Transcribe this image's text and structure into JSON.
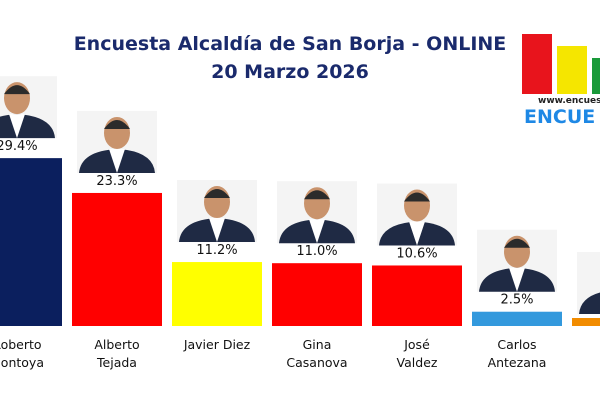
{
  "chart_data": {
    "type": "bar",
    "title": "Encuesta Alcaldía de San Borja - ONLINE",
    "subtitle": "20 Marzo 2026",
    "categories": [
      "Roberto Montoya",
      "Alberto Tejada",
      "Javier Diez",
      "Gina Casanova",
      "José Valdez",
      "Carlos Antezana",
      null
    ],
    "values": [
      29.4,
      23.3,
      11.2,
      11.0,
      10.6,
      2.5,
      1.4
    ],
    "value_labels": [
      "29.4%",
      "23.3%",
      "11.2%",
      "11.0%",
      "10.6%",
      "2.5%",
      null
    ],
    "colors": [
      "#0b1f5e",
      "#ff0000",
      "#ffff00",
      "#ff0000",
      "#ff0000",
      "#3399dd",
      "#f28c00"
    ],
    "ylim": [
      0,
      30
    ]
  },
  "logo": {
    "url": "www.encuesta",
    "name": "ENCUE"
  }
}
